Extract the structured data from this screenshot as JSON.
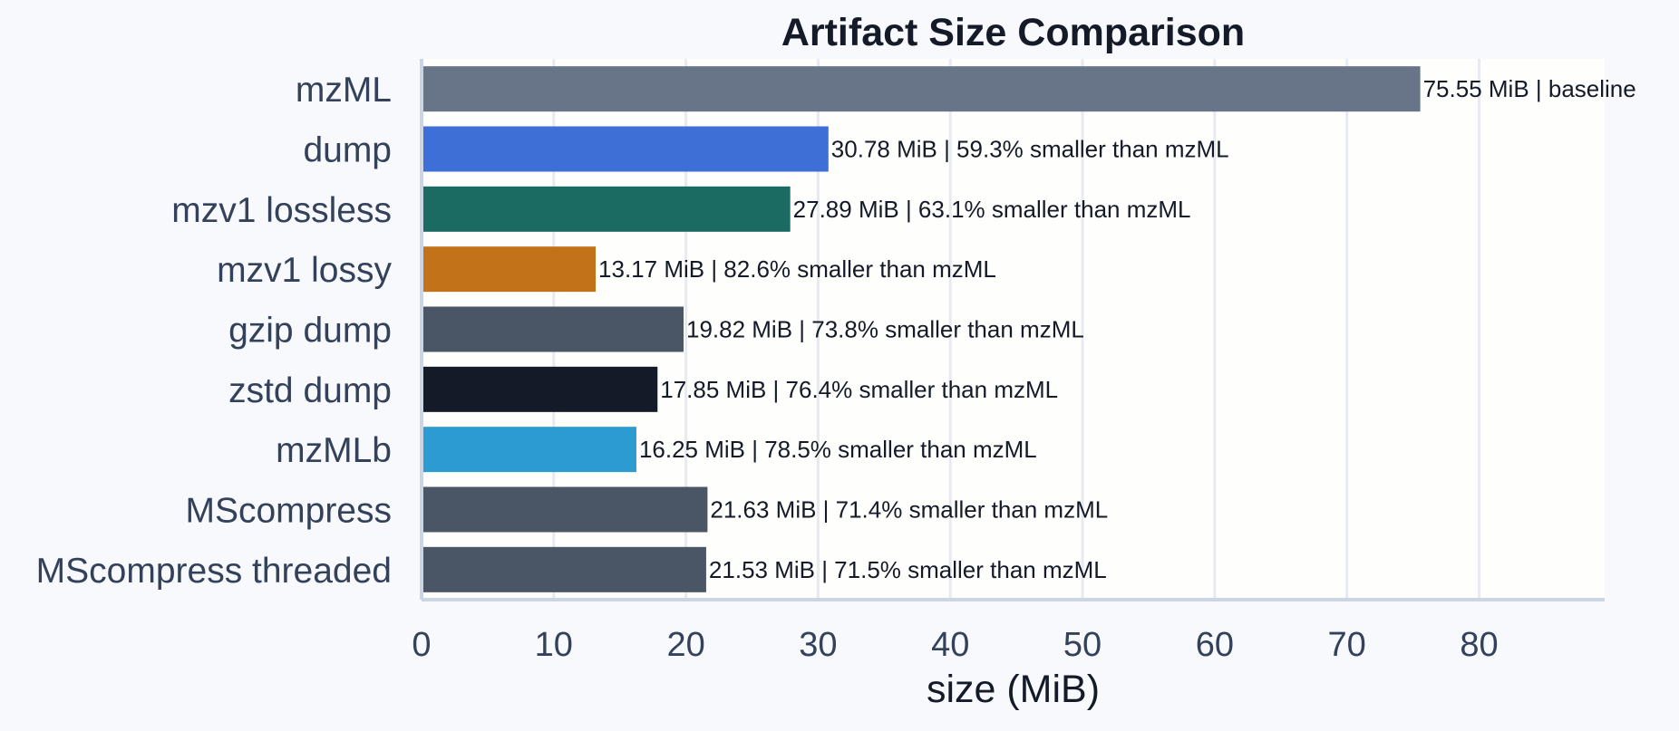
{
  "chart_data": {
    "type": "bar",
    "orientation": "horizontal",
    "title": "Artifact Size Comparison",
    "xlabel": "size (MiB)",
    "ylabel": "",
    "xlim": [
      0,
      89.5
    ],
    "xticks": [
      0,
      10,
      20,
      30,
      40,
      50,
      60,
      70,
      80
    ],
    "grid": "vertical",
    "categories": [
      "mzML",
      "dump",
      "mzv1 lossless",
      "mzv1 lossy",
      "gzip dump",
      "zstd dump",
      "mzMLb",
      "MScompress",
      "MScompress threaded"
    ],
    "values": [
      75.55,
      30.78,
      27.89,
      13.17,
      19.82,
      17.85,
      16.25,
      21.63,
      21.53
    ],
    "data_labels": [
      "75.55 MiB  |  baseline",
      "30.78 MiB  |  59.3% smaller than mzML",
      "27.89 MiB  |  63.1% smaller than mzML",
      "13.17 MiB  |  82.6% smaller than mzML",
      "19.82 MiB  |  73.8% smaller than mzML",
      "17.85 MiB  |  76.4% smaller than mzML",
      "16.25 MiB  |  78.5% smaller than mzML",
      "21.63 MiB  |  71.4% smaller than mzML",
      "21.53 MiB  |  71.5% smaller than mzML"
    ],
    "colors": [
      "#687487",
      "#3d6fd6",
      "#1b6b62",
      "#c2731a",
      "#4a5566",
      "#141a28",
      "#2b9bd1",
      "#4a5566",
      "#4a5566"
    ]
  }
}
